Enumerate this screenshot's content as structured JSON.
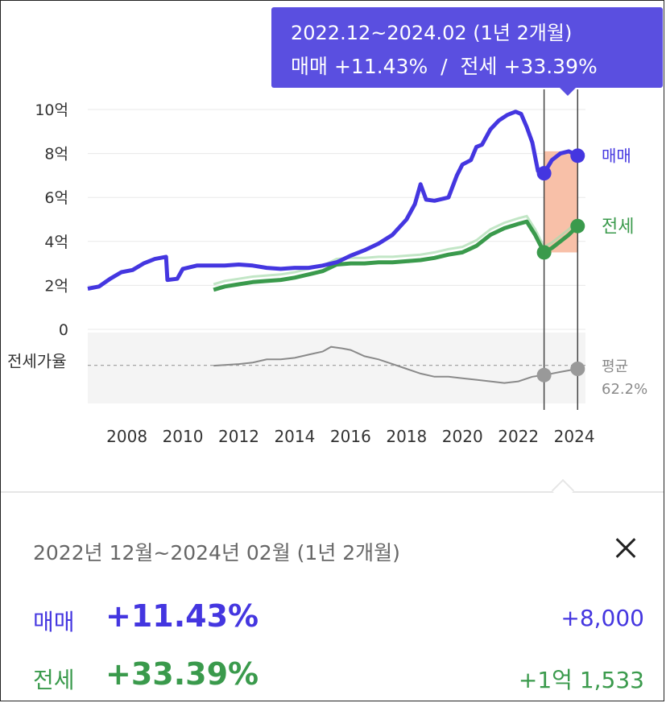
{
  "tooltip": {
    "period": "2022.12~2024.02 (1년 2개월)",
    "sale_label": "매매",
    "sale_change": "+11.43%",
    "separator": "/",
    "jeonse_label": "전세",
    "jeonse_change": "+33.39%"
  },
  "detail": {
    "period": "2022년 12월~2024년 02월 (1년 2개월)",
    "rows": [
      {
        "label": "매매",
        "change": "+11.43%",
        "amount": "+8,000"
      },
      {
        "label": "전세",
        "change": "+33.39%",
        "amount": "+1억 1,533"
      }
    ]
  },
  "colors": {
    "sale": "#4436e0",
    "jeonse": "#3a9a4c",
    "jeonse_light": "#a8dcae",
    "ratio": "#8a8a8a",
    "highlight": "#f8c0a8",
    "tooltip_bg": "#5a4fe0"
  },
  "chart_data": {
    "type": "line",
    "y_unit": "억",
    "y_ticks": [
      "10억",
      "8억",
      "6억",
      "4억",
      "2억",
      "0"
    ],
    "y_tick_values": [
      10,
      8,
      6,
      4,
      2,
      0
    ],
    "ylim": [
      0,
      10
    ],
    "xlim": [
      2006.6,
      2024.4
    ],
    "x_ticks": [
      "2008",
      "2010",
      "2012",
      "2014",
      "2016",
      "2018",
      "2020",
      "2022",
      "2024"
    ],
    "x_tick_values": [
      2008,
      2010,
      2012,
      2014,
      2016,
      2018,
      2020,
      2022,
      2024
    ],
    "highlight_range": [
      2022.92,
      2024.12
    ],
    "series": [
      {
        "name": "매매",
        "points": [
          [
            2006.6,
            1.85
          ],
          [
            2007.0,
            1.95
          ],
          [
            2007.4,
            2.3
          ],
          [
            2007.8,
            2.6
          ],
          [
            2008.2,
            2.7
          ],
          [
            2008.6,
            3.0
          ],
          [
            2009.0,
            3.2
          ],
          [
            2009.4,
            3.3
          ],
          [
            2009.45,
            2.25
          ],
          [
            2009.8,
            2.3
          ],
          [
            2010.0,
            2.75
          ],
          [
            2010.5,
            2.9
          ],
          [
            2011.0,
            2.9
          ],
          [
            2011.5,
            2.9
          ],
          [
            2012.0,
            2.95
          ],
          [
            2012.5,
            2.9
          ],
          [
            2013.0,
            2.8
          ],
          [
            2013.5,
            2.75
          ],
          [
            2014.0,
            2.8
          ],
          [
            2014.5,
            2.8
          ],
          [
            2015.0,
            2.9
          ],
          [
            2015.5,
            3.05
          ],
          [
            2016.0,
            3.35
          ],
          [
            2016.5,
            3.6
          ],
          [
            2017.0,
            3.9
          ],
          [
            2017.5,
            4.3
          ],
          [
            2018.0,
            5.0
          ],
          [
            2018.3,
            5.7
          ],
          [
            2018.5,
            6.6
          ],
          [
            2018.7,
            5.9
          ],
          [
            2019.0,
            5.85
          ],
          [
            2019.5,
            6.0
          ],
          [
            2019.8,
            7.0
          ],
          [
            2020.0,
            7.5
          ],
          [
            2020.3,
            7.7
          ],
          [
            2020.5,
            8.3
          ],
          [
            2020.7,
            8.4
          ],
          [
            2021.0,
            9.1
          ],
          [
            2021.3,
            9.5
          ],
          [
            2021.6,
            9.75
          ],
          [
            2021.9,
            9.9
          ],
          [
            2022.1,
            9.8
          ],
          [
            2022.3,
            9.2
          ],
          [
            2022.5,
            8.5
          ],
          [
            2022.7,
            7.2
          ],
          [
            2022.92,
            7.1
          ],
          [
            2023.2,
            7.7
          ],
          [
            2023.5,
            8.0
          ],
          [
            2023.8,
            8.1
          ],
          [
            2024.12,
            7.9
          ]
        ],
        "end_label": "매매"
      },
      {
        "name": "전세",
        "points": [
          [
            2011.1,
            1.8
          ],
          [
            2011.5,
            1.95
          ],
          [
            2012.0,
            2.05
          ],
          [
            2012.5,
            2.15
          ],
          [
            2013.0,
            2.2
          ],
          [
            2013.5,
            2.25
          ],
          [
            2014.0,
            2.35
          ],
          [
            2014.5,
            2.5
          ],
          [
            2015.0,
            2.65
          ],
          [
            2015.5,
            2.95
          ],
          [
            2016.0,
            3.0
          ],
          [
            2016.5,
            3.0
          ],
          [
            2017.0,
            3.05
          ],
          [
            2017.5,
            3.05
          ],
          [
            2018.0,
            3.1
          ],
          [
            2018.5,
            3.15
          ],
          [
            2019.0,
            3.25
          ],
          [
            2019.5,
            3.4
          ],
          [
            2020.0,
            3.5
          ],
          [
            2020.5,
            3.8
          ],
          [
            2021.0,
            4.3
          ],
          [
            2021.5,
            4.6
          ],
          [
            2022.0,
            4.8
          ],
          [
            2022.3,
            4.9
          ],
          [
            2022.6,
            4.3
          ],
          [
            2022.92,
            3.5
          ],
          [
            2023.2,
            3.7
          ],
          [
            2023.5,
            4.0
          ],
          [
            2023.8,
            4.3
          ],
          [
            2024.12,
            4.7
          ]
        ],
        "end_label": "전세"
      }
    ],
    "ratio": {
      "label": "전세가율",
      "average_label": "평균",
      "average_value": "62.2%",
      "average": 62.2,
      "ylim": [
        40,
        80
      ],
      "points": [
        [
          2011.1,
          62
        ],
        [
          2012.0,
          63
        ],
        [
          2012.5,
          64
        ],
        [
          2013.0,
          66
        ],
        [
          2013.5,
          66
        ],
        [
          2014.0,
          67
        ],
        [
          2014.5,
          69
        ],
        [
          2015.0,
          71
        ],
        [
          2015.3,
          74
        ],
        [
          2015.7,
          73
        ],
        [
          2016.0,
          72
        ],
        [
          2016.5,
          68
        ],
        [
          2017.0,
          66
        ],
        [
          2017.5,
          63
        ],
        [
          2018.0,
          60
        ],
        [
          2018.5,
          57
        ],
        [
          2019.0,
          55
        ],
        [
          2019.5,
          55
        ],
        [
          2020.0,
          54
        ],
        [
          2020.5,
          53
        ],
        [
          2021.0,
          52
        ],
        [
          2021.5,
          51
        ],
        [
          2022.0,
          52
        ],
        [
          2022.5,
          55
        ],
        [
          2022.92,
          56
        ],
        [
          2023.5,
          58
        ],
        [
          2024.12,
          60
        ]
      ]
    }
  }
}
